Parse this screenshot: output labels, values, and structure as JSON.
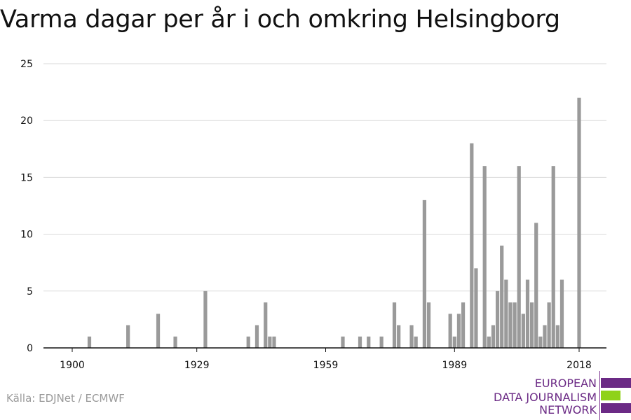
{
  "chart_data": {
    "type": "bar",
    "title": "Varma dagar per år i och omkring Helsingborg",
    "xlabel": "",
    "ylabel": "",
    "x_range": [
      1900,
      2018
    ],
    "x_ticks": [
      1900,
      1929,
      1959,
      1989,
      2018
    ],
    "ylim": [
      0,
      25
    ],
    "y_ticks": [
      0,
      5,
      10,
      15,
      20,
      25
    ],
    "grid": true,
    "bar_color": "#9a9a9a",
    "years": [
      1904,
      1913,
      1920,
      1924,
      1931,
      1941,
      1943,
      1945,
      1946,
      1947,
      1963,
      1967,
      1969,
      1972,
      1975,
      1976,
      1979,
      1980,
      1982,
      1983,
      1988,
      1989,
      1990,
      1991,
      1993,
      1994,
      1996,
      1997,
      1998,
      1999,
      2000,
      2001,
      2002,
      2003,
      2004,
      2005,
      2006,
      2007,
      2008,
      2009,
      2010,
      2011,
      2012,
      2013,
      2014,
      2015,
      2018
    ],
    "values": [
      1,
      2,
      3,
      1,
      5,
      1,
      2,
      4,
      1,
      1,
      1,
      1,
      1,
      1,
      4,
      2,
      2,
      1,
      13,
      4,
      3,
      1,
      3,
      4,
      18,
      7,
      16,
      1,
      2,
      5,
      9,
      6,
      4,
      4,
      16,
      3,
      6,
      4,
      11,
      1,
      2,
      4,
      16,
      2,
      6,
      0,
      22
    ]
  },
  "source": "Källa: EDJNet / ECMWF",
  "logo": {
    "lines": [
      "EUROPEAN",
      "DATA JOURNALISM",
      "NETWORK"
    ],
    "colors": [
      "#6b2a85",
      "#8fd219",
      "#6b2a85"
    ]
  }
}
